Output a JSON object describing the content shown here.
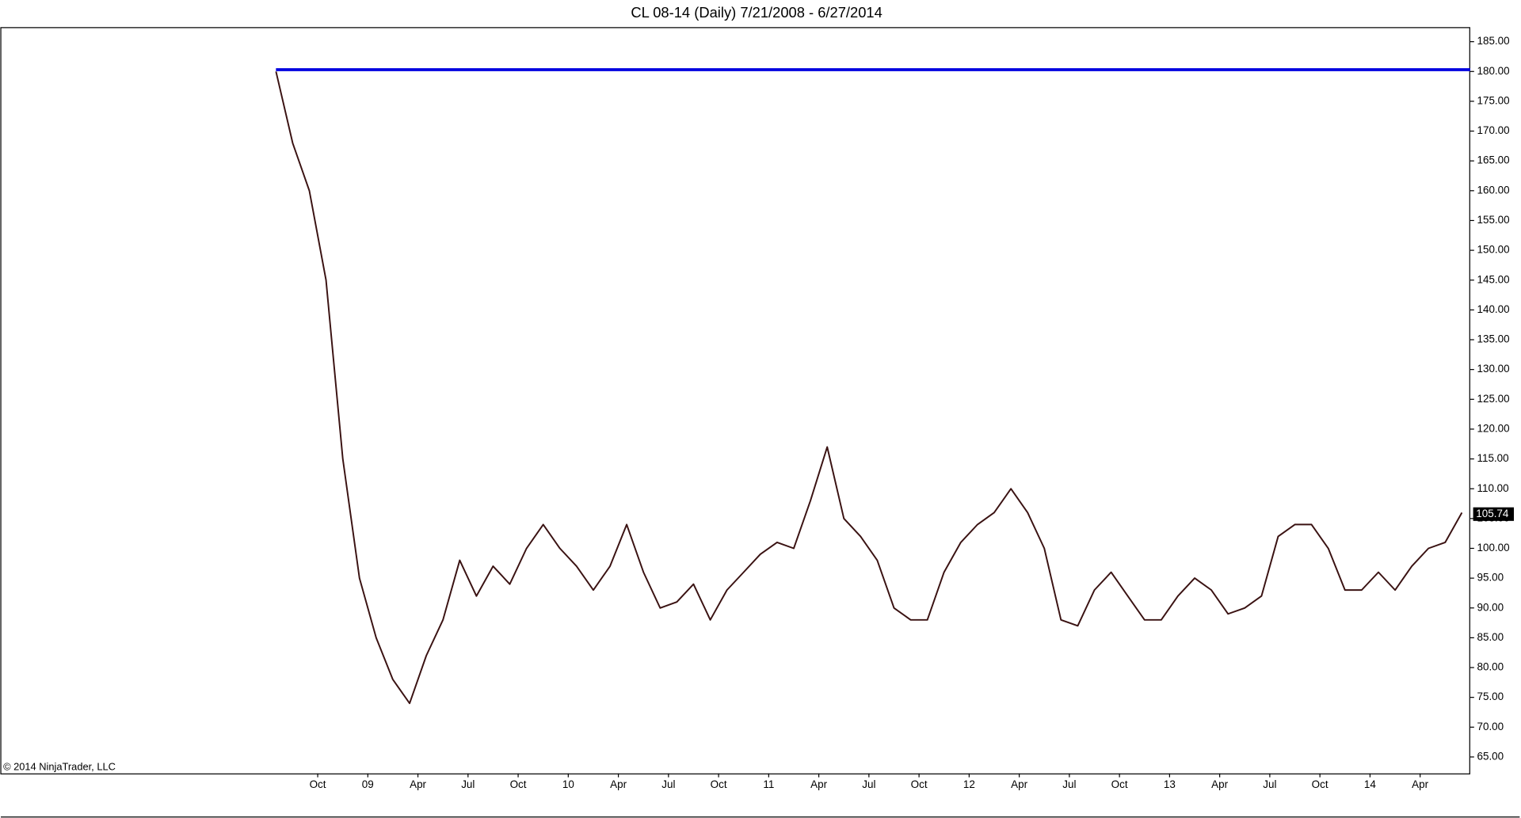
{
  "chart_data": {
    "type": "line",
    "title": "CL 08-14 (Daily)  7/21/2008 - 6/27/2014",
    "copyright": "© 2014 NinjaTrader, LLC",
    "x": [
      "2008-07",
      "2008-08",
      "2008-09",
      "2008-10",
      "2008-11",
      "2008-12",
      "2009-01",
      "2009-02",
      "2009-03",
      "2009-04",
      "2009-05",
      "2009-06",
      "2009-07",
      "2009-08",
      "2009-09",
      "2009-10",
      "2009-11",
      "2009-12",
      "2010-01",
      "2010-02",
      "2010-03",
      "2010-04",
      "2010-05",
      "2010-06",
      "2010-07",
      "2010-08",
      "2010-09",
      "2010-10",
      "2010-11",
      "2010-12",
      "2011-01",
      "2011-02",
      "2011-03",
      "2011-04",
      "2011-05",
      "2011-06",
      "2011-07",
      "2011-08",
      "2011-09",
      "2011-10",
      "2011-11",
      "2011-12",
      "2012-01",
      "2012-02",
      "2012-03",
      "2012-04",
      "2012-05",
      "2012-06",
      "2012-07",
      "2012-08",
      "2012-09",
      "2012-10",
      "2012-11",
      "2012-12",
      "2013-01",
      "2013-02",
      "2013-03",
      "2013-04",
      "2013-05",
      "2013-06",
      "2013-07",
      "2013-08",
      "2013-09",
      "2013-10",
      "2013-11",
      "2013-12",
      "2014-01",
      "2014-02",
      "2014-03",
      "2014-04",
      "2014-05",
      "2014-06"
    ],
    "series": [
      {
        "name": "CL 08-14",
        "color": "#3a1212",
        "values": [
          180,
          168,
          160,
          145,
          115,
          95,
          85,
          78,
          74,
          82,
          88,
          98,
          92,
          97,
          94,
          100,
          104,
          100,
          97,
          93,
          97,
          104,
          96,
          90,
          91,
          94,
          88,
          93,
          96,
          99,
          101,
          100,
          108,
          117,
          105,
          102,
          98,
          90,
          88,
          88,
          96,
          101,
          104,
          106,
          110,
          106,
          100,
          88,
          87,
          93,
          96,
          92,
          88,
          88,
          92,
          95,
          93,
          89,
          90,
          92,
          102,
          104,
          104,
          100,
          93,
          93,
          96,
          93,
          97,
          100,
          101,
          106
        ]
      }
    ],
    "last_price": 105.74,
    "hline": 180.3,
    "hline_color": "#0000e0",
    "xlim": [
      "2007-03",
      "2014-07"
    ],
    "xticks": [
      {
        "value": "2008-10",
        "label": "Oct"
      },
      {
        "value": "2009-01",
        "label": "09"
      },
      {
        "value": "2009-04",
        "label": "Apr"
      },
      {
        "value": "2009-07",
        "label": "Jul"
      },
      {
        "value": "2009-10",
        "label": "Oct"
      },
      {
        "value": "2010-01",
        "label": "10"
      },
      {
        "value": "2010-04",
        "label": "Apr"
      },
      {
        "value": "2010-07",
        "label": "Jul"
      },
      {
        "value": "2010-10",
        "label": "Oct"
      },
      {
        "value": "2011-01",
        "label": "11"
      },
      {
        "value": "2011-04",
        "label": "Apr"
      },
      {
        "value": "2011-07",
        "label": "Jul"
      },
      {
        "value": "2011-10",
        "label": "Oct"
      },
      {
        "value": "2012-01",
        "label": "12"
      },
      {
        "value": "2012-04",
        "label": "Apr"
      },
      {
        "value": "2012-07",
        "label": "Jul"
      },
      {
        "value": "2012-10",
        "label": "Oct"
      },
      {
        "value": "2013-01",
        "label": "13"
      },
      {
        "value": "2013-04",
        "label": "Apr"
      },
      {
        "value": "2013-07",
        "label": "Jul"
      },
      {
        "value": "2013-10",
        "label": "Oct"
      },
      {
        "value": "2014-01",
        "label": "14"
      },
      {
        "value": "2014-04",
        "label": "Apr"
      }
    ],
    "ylim": [
      62.24,
      187.44
    ],
    "yticks": [
      {
        "value": 65,
        "label": "65.00"
      },
      {
        "value": 70,
        "label": "70.00"
      },
      {
        "value": 75,
        "label": "75.00"
      },
      {
        "value": 80,
        "label": "80.00"
      },
      {
        "value": 85,
        "label": "85.00"
      },
      {
        "value": 90,
        "label": "90.00"
      },
      {
        "value": 95,
        "label": "95.00"
      },
      {
        "value": 100,
        "label": "100.00"
      },
      {
        "value": 105,
        "label": "105.00"
      },
      {
        "value": 110,
        "label": "110.00"
      },
      {
        "value": 115,
        "label": "115.00"
      },
      {
        "value": 120,
        "label": "120.00"
      },
      {
        "value": 125,
        "label": "125.00"
      },
      {
        "value": 130,
        "label": "130.00"
      },
      {
        "value": 135,
        "label": "135.00"
      },
      {
        "value": 140,
        "label": "140.00"
      },
      {
        "value": 145,
        "label": "145.00"
      },
      {
        "value": 150,
        "label": "150.00"
      },
      {
        "value": 155,
        "label": "155.00"
      },
      {
        "value": 160,
        "label": "160.00"
      },
      {
        "value": 165,
        "label": "165.00"
      },
      {
        "value": 170,
        "label": "170.00"
      },
      {
        "value": 175,
        "label": "175.00"
      },
      {
        "value": 180,
        "label": "180.00"
      },
      {
        "value": 185,
        "label": "185.00"
      }
    ],
    "grid": false
  }
}
